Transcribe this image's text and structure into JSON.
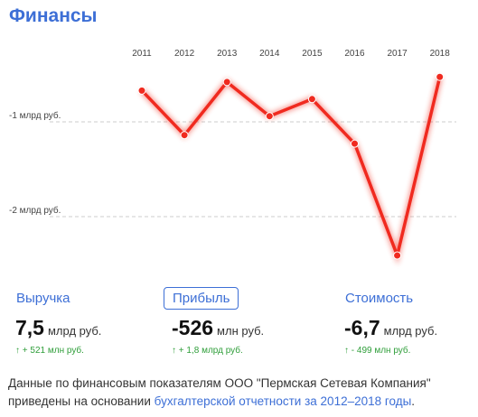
{
  "header": {
    "title": "Финансы"
  },
  "chart_data": {
    "type": "line",
    "categories": [
      "2011",
      "2012",
      "2013",
      "2014",
      "2015",
      "2016",
      "2017",
      "2018"
    ],
    "series": [
      {
        "color": "#f02a1f",
        "values": [
          -0.67,
          -1.14,
          -0.58,
          -0.94,
          -0.76,
          -1.23,
          -2.41,
          -0.526
        ]
      }
    ],
    "ylim": [
      -2.6,
      -0.4
    ],
    "yticks": [
      {
        "value": -1,
        "label": "-1 млрд руб."
      },
      {
        "value": -2,
        "label": "-2 млрд руб."
      }
    ],
    "grid": true
  },
  "tabs": [
    {
      "label": "Выручка",
      "value": "7,5",
      "unit": "млрд руб.",
      "change": "↑ + 521 млн руб.",
      "active": false
    },
    {
      "label": "Прибыль",
      "value": "-526",
      "unit": "млн руб.",
      "change": "↑ + 1,8 млрд руб.",
      "active": true
    },
    {
      "label": "Стоимость",
      "value": "-6,7",
      "unit": "млрд руб.",
      "change": "↑ - 499 млн руб.",
      "active": false
    }
  ],
  "note": {
    "text": "Данные по финансовым показателям ООО \"Пермская Сетевая Компания\" приведены на основании ",
    "link": "бухгалтерской отчетности за 2012–2018 годы",
    "end": "."
  }
}
